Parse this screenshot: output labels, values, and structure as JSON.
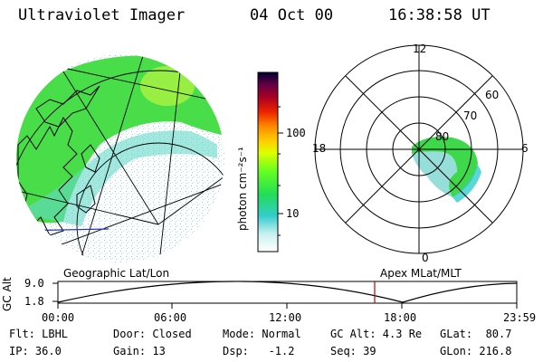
{
  "header": {
    "instrument": "Ultraviolet Imager",
    "date": "04 Oct 00",
    "time": "16:38:58 UT"
  },
  "colorbar": {
    "label": "photon cm⁻²s⁻¹",
    "ticks": [
      "100",
      "10"
    ]
  },
  "polar_plot": {
    "mlt_labels": [
      "12",
      "18",
      "6",
      "0"
    ],
    "lat_labels": [
      "60",
      "70",
      "80"
    ]
  },
  "projection_labels": {
    "left": "Geographic Lat/Lon",
    "right": "Apex MLat/MLT"
  },
  "altitude_plot": {
    "ylabel": "GC Alt",
    "yticks": [
      "9.0",
      "1.8"
    ],
    "xticks": [
      "00:00",
      "06:00",
      "12:00",
      "18:00",
      "23:59"
    ]
  },
  "info": {
    "flt": "Flt: LBHL",
    "ip": "IP: 36.0",
    "door": "Door: Closed",
    "gain": "Gain: 13",
    "mode": "Mode: Normal",
    "dsp": "Dsp:   -1.2",
    "gc_alt": "GC Alt: 4.3 Re",
    "seq": "Seq: 39",
    "glat": "GLat:  80.7",
    "glon": "GLon: 216.8"
  },
  "colors": {
    "aurora_green": "#33dd33",
    "aurora_cyan": "#33cccc",
    "time_marker": "#cc0000",
    "coast_line": "#000000",
    "blue_line": "#2233cc"
  }
}
